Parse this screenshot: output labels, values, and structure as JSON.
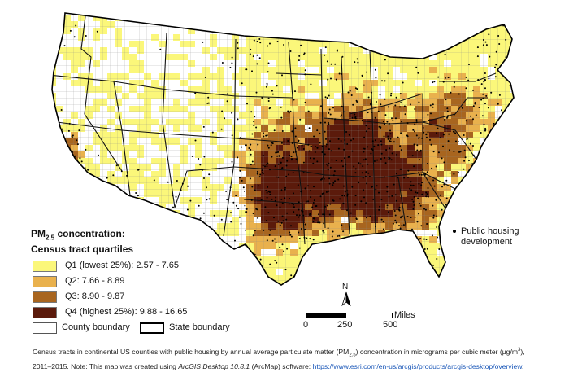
{
  "legend": {
    "title_prefix": "PM",
    "title_sub": "2.5",
    "title_suffix": " concentration:",
    "title_line2": "Census tract quartiles",
    "items": [
      {
        "label": "Q1 (lowest 25%): 2.57 - 7.65",
        "color": "#fbf77a"
      },
      {
        "label": "Q2: 7.66 - 8.89",
        "color": "#e9b14d"
      },
      {
        "label": "Q3: 8.90 - 9.87",
        "color": "#a8651f"
      },
      {
        "label": "Q4 (highest 25%): 9.88 - 16.65",
        "color": "#5b1a0b"
      }
    ],
    "county_boundary": "County boundary",
    "state_boundary": "State boundary",
    "public_housing_line1": "Public housing",
    "public_housing_line2": "development"
  },
  "scale": {
    "ticks": [
      "0",
      "250",
      "500"
    ],
    "units": "Miles",
    "north": "N"
  },
  "caption": {
    "part1": "Census tracts in continental US counties with public housing by annual average particulate matter (PM",
    "sub": "2.5",
    "part2": ") concentration in micrograms per cubic meter (μg/m",
    "sup": "3",
    "part3": "), 2011–2015. Note: This map was created using ",
    "software": "ArcGIS Desktop 10.8.1",
    "part4": " (ArcMap) software: ",
    "link": "https://www.esri.com/en-us/arcgis/products/arcgis-desktop/overview",
    "part5": "."
  },
  "colors": {
    "q1": "#fbf77a",
    "q2": "#e9b14d",
    "q3": "#a8651f",
    "q4": "#5b1a0b",
    "no_data": "#ffffff"
  }
}
